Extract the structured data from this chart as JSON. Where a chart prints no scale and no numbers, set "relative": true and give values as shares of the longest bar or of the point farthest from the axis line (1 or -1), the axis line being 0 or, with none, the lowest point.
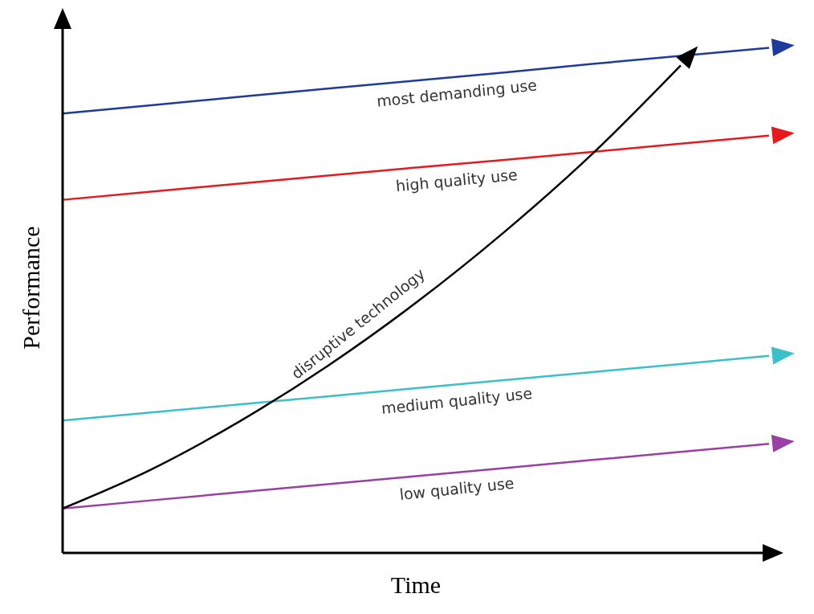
{
  "chart_data": {
    "type": "line",
    "relative": true,
    "xlabel": "Time",
    "ylabel": "Performance",
    "categories": [
      null,
      null,
      null,
      null,
      null,
      null,
      null,
      null,
      null
    ],
    "series": [
      {
        "name": "most demanding use",
        "color": "#1f3a9e",
        "values": [
          0.87,
          0.886,
          0.903,
          0.919,
          0.935,
          0.951,
          0.968,
          0.984,
          1.0
        ]
      },
      {
        "name": "high quality use",
        "color": "#e8191d",
        "values": [
          0.699,
          0.715,
          0.731,
          0.747,
          0.763,
          0.778,
          0.794,
          0.81,
          0.826
        ]
      },
      {
        "name": "medium quality use",
        "color": "#3bbfc8",
        "values": [
          0.262,
          0.278,
          0.294,
          0.31,
          0.326,
          0.342,
          0.358,
          0.374,
          0.39
        ]
      },
      {
        "name": "low quality use",
        "color": "#9b3fa5",
        "values": [
          0.088,
          0.104,
          0.12,
          0.136,
          0.152,
          0.168,
          0.184,
          0.2,
          0.216
        ]
      },
      {
        "name": "disruptive technology",
        "color": "#000000",
        "values": [
          0.088,
          0.165,
          0.26,
          0.37,
          0.495,
          0.635,
          0.79,
          0.965,
          null
        ]
      }
    ]
  }
}
